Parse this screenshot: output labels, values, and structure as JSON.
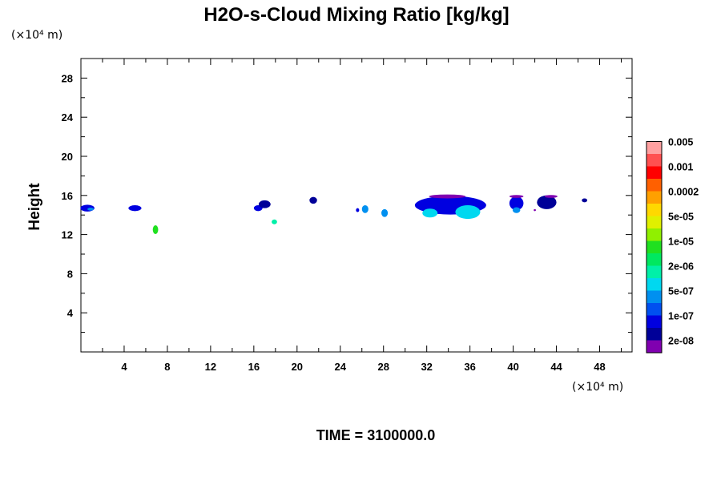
{
  "chart_data": {
    "type": "heatmap",
    "title": "H2O-s-Cloud Mixing Ratio [kg/kg]",
    "ylabel": "Height",
    "x_unit": "(×10⁴ m)",
    "y_unit": "(×10⁴ m)",
    "time_label": "TIME = 3100000.0",
    "xlim": [
      0,
      51
    ],
    "ylim": [
      0,
      30
    ],
    "x_ticks": [
      "4",
      "8",
      "12",
      "16",
      "20",
      "24",
      "28",
      "32",
      "36",
      "40",
      "44",
      "48"
    ],
    "y_ticks": [
      "4",
      "8",
      "12",
      "16",
      "20",
      "24",
      "28"
    ],
    "colorbar": {
      "colors": [
        "#8000b0",
        "#000098",
        "#0000e0",
        "#0050f0",
        "#0090f0",
        "#00d8f0",
        "#00f0a8",
        "#00e860",
        "#20e020",
        "#90f000",
        "#e0f000",
        "#ffd800",
        "#ffa000",
        "#ff6000",
        "#ff0000",
        "#ff5050",
        "#ffa0a0"
      ],
      "labels": [
        "2e-08",
        "1e-07",
        "5e-07",
        "2e-06",
        "1e-05",
        "5e-05",
        "0.0002",
        "0.001",
        "0.005"
      ]
    },
    "cloud_patches": [
      {
        "x": 0.6,
        "y": 14.7,
        "w": 1.3,
        "h": 0.7,
        "level": 2
      },
      {
        "x": 0.9,
        "y": 14.6,
        "w": 0.6,
        "h": 0.3,
        "level": 4
      },
      {
        "x": 5.0,
        "y": 14.7,
        "w": 1.2,
        "h": 0.6,
        "level": 2
      },
      {
        "x": 6.9,
        "y": 12.5,
        "w": 0.5,
        "h": 0.9,
        "level": 8
      },
      {
        "x": 16.4,
        "y": 14.7,
        "w": 0.8,
        "h": 0.6,
        "level": 2
      },
      {
        "x": 17.0,
        "y": 15.1,
        "w": 1.1,
        "h": 0.8,
        "level": 1
      },
      {
        "x": 17.9,
        "y": 13.3,
        "w": 0.5,
        "h": 0.5,
        "level": 6
      },
      {
        "x": 21.5,
        "y": 15.5,
        "w": 0.7,
        "h": 0.7,
        "level": 1
      },
      {
        "x": 25.6,
        "y": 14.5,
        "w": 0.3,
        "h": 0.4,
        "level": 2
      },
      {
        "x": 26.3,
        "y": 14.6,
        "w": 0.6,
        "h": 0.8,
        "level": 4
      },
      {
        "x": 28.1,
        "y": 14.2,
        "w": 0.6,
        "h": 0.8,
        "level": 4
      },
      {
        "x": 34.2,
        "y": 15.0,
        "w": 6.6,
        "h": 1.9,
        "level": 2
      },
      {
        "x": 35.8,
        "y": 14.3,
        "w": 2.3,
        "h": 1.4,
        "level": 5
      },
      {
        "x": 32.3,
        "y": 14.2,
        "w": 1.4,
        "h": 0.9,
        "level": 5
      },
      {
        "x": 33.9,
        "y": 15.9,
        "w": 3.4,
        "h": 0.4,
        "level": 0
      },
      {
        "x": 40.3,
        "y": 15.2,
        "w": 1.3,
        "h": 1.4,
        "level": 2
      },
      {
        "x": 40.3,
        "y": 14.5,
        "w": 0.7,
        "h": 0.6,
        "level": 4
      },
      {
        "x": 40.3,
        "y": 15.9,
        "w": 1.3,
        "h": 0.3,
        "level": 0
      },
      {
        "x": 43.1,
        "y": 15.3,
        "w": 1.8,
        "h": 1.4,
        "level": 1
      },
      {
        "x": 43.5,
        "y": 15.9,
        "w": 1.2,
        "h": 0.3,
        "level": 0
      },
      {
        "x": 42.0,
        "y": 14.5,
        "w": 0.2,
        "h": 0.2,
        "level": 0
      },
      {
        "x": 46.6,
        "y": 15.5,
        "w": 0.5,
        "h": 0.4,
        "level": 1
      }
    ]
  }
}
